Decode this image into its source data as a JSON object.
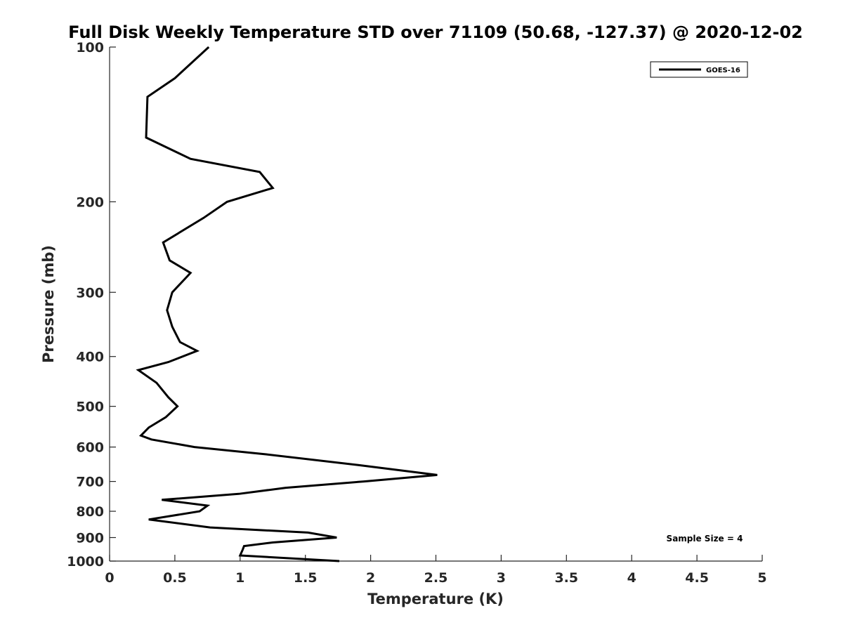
{
  "chart_data": {
    "type": "line",
    "title": "Full Disk Weekly Temperature STD over 71109 (50.68, -127.37) @ 2020-12-02",
    "xlabel": "Temperature (K)",
    "ylabel": "Pressure (mb)",
    "xlim": [
      0,
      5
    ],
    "ylim": [
      100,
      1000
    ],
    "y_scale": "log",
    "y_reversed": true,
    "x_ticks": [
      "0",
      "0.5",
      "1",
      "1.5",
      "2",
      "2.5",
      "3",
      "3.5",
      "4",
      "4.5",
      "5"
    ],
    "y_ticks": [
      "100",
      "200",
      "300",
      "400",
      "500",
      "600",
      "700",
      "800",
      "900",
      "1000"
    ],
    "grid": false,
    "legend_position": "top-right",
    "annotation": "Sample Size = 4",
    "series": [
      {
        "name": "GOES-16",
        "color": "#000000",
        "points": [
          [
            0.76,
            100
          ],
          [
            0.5,
            115
          ],
          [
            0.29,
            125
          ],
          [
            0.28,
            150
          ],
          [
            0.62,
            165
          ],
          [
            1.15,
            175
          ],
          [
            1.25,
            188
          ],
          [
            0.9,
            200
          ],
          [
            0.72,
            215
          ],
          [
            0.41,
            240
          ],
          [
            0.46,
            260
          ],
          [
            0.62,
            275
          ],
          [
            0.48,
            300
          ],
          [
            0.44,
            325
          ],
          [
            0.48,
            350
          ],
          [
            0.54,
            375
          ],
          [
            0.67,
            390
          ],
          [
            0.45,
            410
          ],
          [
            0.22,
            425
          ],
          [
            0.36,
            450
          ],
          [
            0.45,
            480
          ],
          [
            0.52,
            500
          ],
          [
            0.43,
            525
          ],
          [
            0.3,
            550
          ],
          [
            0.24,
            570
          ],
          [
            0.32,
            580
          ],
          [
            0.65,
            600
          ],
          [
            1.2,
            620
          ],
          [
            1.9,
            650
          ],
          [
            2.51,
            680
          ],
          [
            1.95,
            700
          ],
          [
            1.35,
            720
          ],
          [
            0.99,
            740
          ],
          [
            0.4,
            760
          ],
          [
            0.75,
            780
          ],
          [
            0.69,
            800
          ],
          [
            0.3,
            830
          ],
          [
            0.77,
            860
          ],
          [
            1.52,
            880
          ],
          [
            1.74,
            900
          ],
          [
            1.25,
            920
          ],
          [
            1.03,
            935
          ],
          [
            1.02,
            950
          ],
          [
            1.0,
            975
          ],
          [
            1.76,
            1000
          ]
        ]
      }
    ]
  }
}
